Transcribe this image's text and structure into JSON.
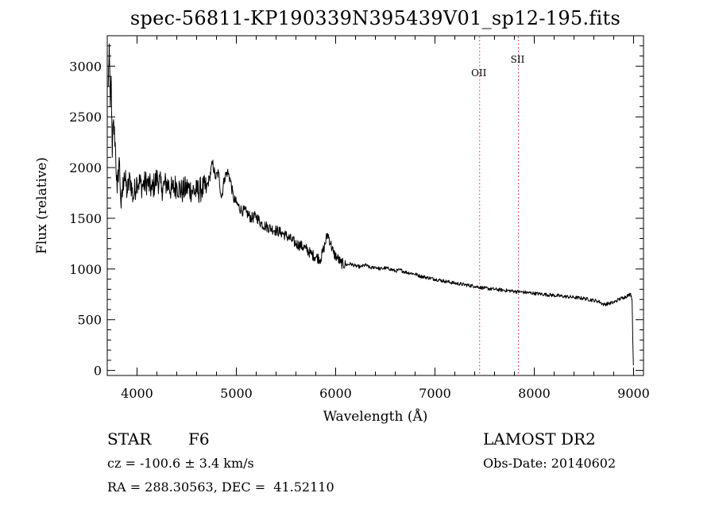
{
  "header": {
    "title": "spec-56811-KP190339N395439V01_sp12-195.fits"
  },
  "chart_data": {
    "type": "line",
    "title": "spec-56811-KP190339N395439V01_sp12-195.fits",
    "xlabel": "Wavelength (Å)",
    "ylabel": "Flux (relative)",
    "xlim": [
      3700,
      9100
    ],
    "ylim": [
      -50,
      3300
    ],
    "x_ticks": [
      4000,
      5000,
      6000,
      7000,
      8000,
      9000
    ],
    "y_ticks": [
      0,
      500,
      1000,
      1500,
      2000,
      2500,
      3000
    ],
    "grid": false,
    "line_color": "#000000",
    "marker_color": "#d62728",
    "annotations": [
      {
        "label": "OII",
        "wavelength": 7450
      },
      {
        "label": "SII",
        "wavelength": 7840
      }
    ],
    "series": [
      {
        "x": [
          3710,
          3720,
          3730,
          3740,
          3750,
          3760,
          3780,
          3800,
          3820,
          3840,
          3870,
          3900,
          3930,
          3960,
          4000,
          4050,
          4100,
          4150,
          4200,
          4250,
          4300,
          4350,
          4400,
          4450,
          4500,
          4550,
          4600,
          4650,
          4700,
          4730,
          4760,
          4790,
          4820,
          4850,
          4880,
          4910,
          4940,
          4970,
          5000,
          5050,
          5100,
          5150,
          5200,
          5250,
          5300,
          5350,
          5400,
          5450,
          5500,
          5550,
          5600,
          5650,
          5700,
          5750,
          5800,
          5850,
          5880,
          5920,
          5950,
          5980,
          6010,
          6050,
          6100,
          6150,
          6200,
          6250,
          6300,
          6350,
          6400,
          6450,
          6500,
          6550,
          6600,
          6650,
          6700,
          6750,
          6800,
          6850,
          6900,
          6950,
          7000,
          7100,
          7200,
          7300,
          7400,
          7500,
          7600,
          7700,
          7800,
          7900,
          8000,
          8100,
          8200,
          8300,
          8400,
          8500,
          8600,
          8650,
          8700,
          8750,
          8800,
          8850,
          8900,
          8950,
          8970,
          8985,
          8992,
          8998
        ],
        "y": [
          2800,
          3220,
          2600,
          2900,
          2100,
          2450,
          2250,
          1750,
          2100,
          1600,
          1950,
          1750,
          1900,
          1700,
          1880,
          1820,
          1860,
          1780,
          1900,
          1800,
          1850,
          1780,
          1830,
          1760,
          1800,
          1780,
          1760,
          1790,
          1800,
          1900,
          2050,
          1900,
          1950,
          1700,
          1900,
          1960,
          1880,
          1700,
          1650,
          1580,
          1560,
          1500,
          1520,
          1450,
          1420,
          1400,
          1380,
          1360,
          1330,
          1290,
          1250,
          1230,
          1200,
          1150,
          1120,
          1100,
          1200,
          1350,
          1250,
          1150,
          1120,
          1060,
          1040,
          1050,
          1030,
          1020,
          1040,
          1010,
          1020,
          1000,
          1010,
          1000,
          980,
          990,
          970,
          960,
          950,
          930,
          920,
          910,
          900,
          880,
          860,
          845,
          830,
          810,
          800,
          790,
          780,
          770,
          760,
          750,
          740,
          730,
          720,
          710,
          690,
          680,
          650,
          660,
          670,
          700,
          720,
          740,
          760,
          700,
          300,
          50
        ]
      }
    ]
  },
  "info": {
    "class_label": "STAR",
    "subclass": "F6",
    "survey": "LAMOST DR2",
    "cz": "cz = -100.6 ± 3.4 km/s",
    "obs_date": "Obs-Date: 20140602",
    "coords": "RA = 288.30563, DEC =  41.52110"
  }
}
